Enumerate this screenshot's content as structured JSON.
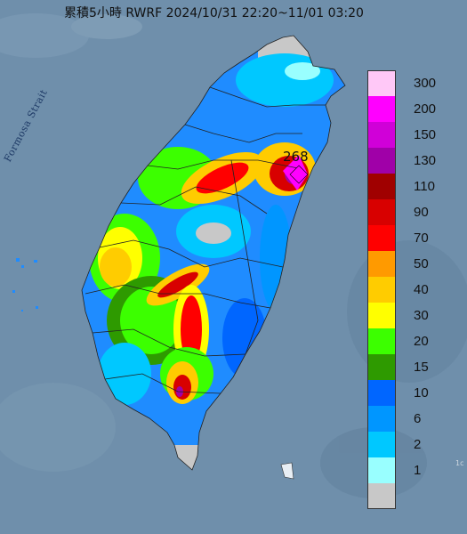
{
  "title": "累積5小時 RWRF 2024/10/31 22:20~11/01 03:20",
  "water_label": "Formosa Strait",
  "peak_value": "268",
  "corner_mark": "1c",
  "legend": {
    "items": [
      {
        "label": "300",
        "color": "#ffc8f7"
      },
      {
        "label": "200",
        "color": "#ff00ff"
      },
      {
        "label": "150",
        "color": "#d000d8"
      },
      {
        "label": "130",
        "color": "#a000a8"
      },
      {
        "label": "110",
        "color": "#a00000"
      },
      {
        "label": "90",
        "color": "#d80000"
      },
      {
        "label": "70",
        "color": "#ff0000"
      },
      {
        "label": "50",
        "color": "#ff9a00"
      },
      {
        "label": "40",
        "color": "#ffcc00"
      },
      {
        "label": "30",
        "color": "#ffff00"
      },
      {
        "label": "20",
        "color": "#3cff00"
      },
      {
        "label": "15",
        "color": "#2e9a00"
      },
      {
        "label": "10",
        "color": "#0066ff"
      },
      {
        "label": "6",
        "color": "#0096ff"
      },
      {
        "label": "2",
        "color": "#00c8ff"
      },
      {
        "label": "1",
        "color": "#99ffff"
      },
      {
        "label": "",
        "color": "#c8c8c8"
      }
    ]
  },
  "colors": {
    "sea": "#6f8fab",
    "land_base": "#1f8cff"
  }
}
